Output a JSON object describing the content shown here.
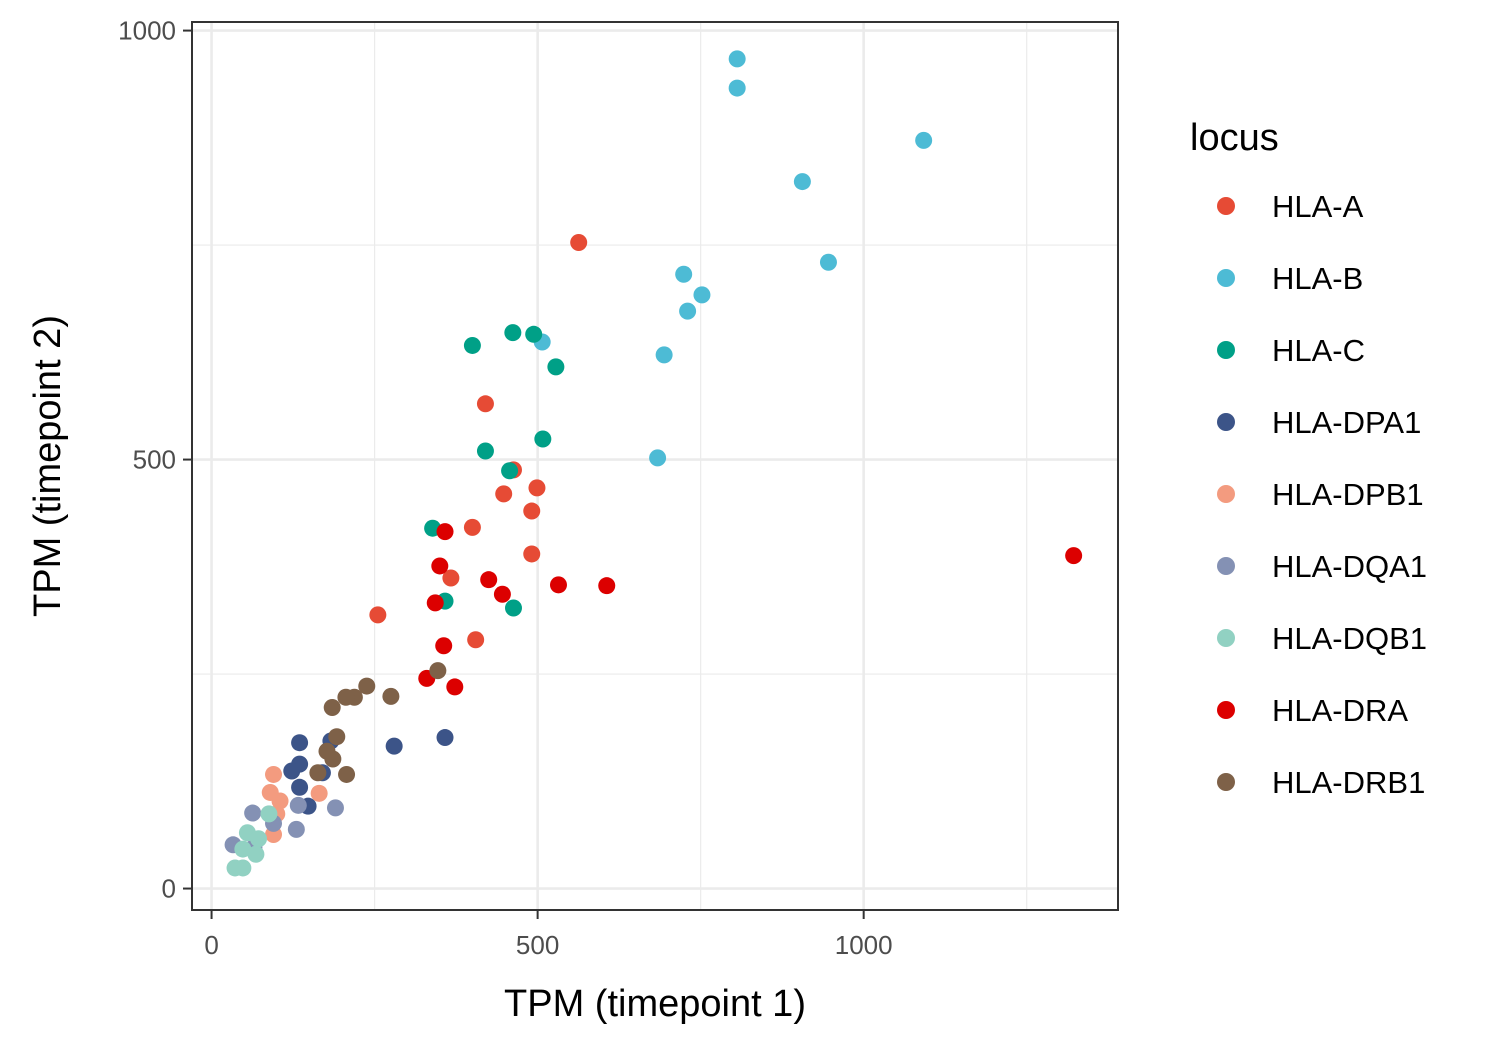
{
  "chart_data": {
    "type": "scatter",
    "title": "",
    "xlabel": "TPM (timepoint 1)",
    "ylabel": "TPM (timepoint 2)",
    "xlim": [
      -30,
      1390
    ],
    "ylim": [
      -25,
      1010
    ],
    "x_ticks": [
      0,
      500,
      1000
    ],
    "y_ticks": [
      0,
      500,
      1000
    ],
    "x_tick_labels": [
      "0",
      "500",
      "1000"
    ],
    "y_tick_labels": [
      "0",
      "500",
      "1000"
    ],
    "grid": true,
    "legend": {
      "title": "locus",
      "position": "right"
    },
    "series": [
      {
        "name": "HLA-A",
        "color": "#E64B35",
        "points": [
          [
            563,
            753
          ],
          [
            420,
            565
          ],
          [
            463,
            488
          ],
          [
            499,
            467
          ],
          [
            448,
            460
          ],
          [
            491,
            440
          ],
          [
            400,
            421
          ],
          [
            491,
            390
          ],
          [
            367,
            362
          ],
          [
            255,
            319
          ],
          [
            405,
            290
          ]
        ]
      },
      {
        "name": "HLA-B",
        "color": "#4DBBD5",
        "points": [
          [
            806,
            967
          ],
          [
            806,
            933
          ],
          [
            1092,
            872
          ],
          [
            906,
            824
          ],
          [
            946,
            730
          ],
          [
            724,
            716
          ],
          [
            752,
            692
          ],
          [
            730,
            673
          ],
          [
            507,
            637
          ],
          [
            694,
            622
          ],
          [
            684,
            502
          ]
        ]
      },
      {
        "name": "HLA-C",
        "color": "#00A087",
        "points": [
          [
            400,
            633
          ],
          [
            462,
            648
          ],
          [
            494,
            646
          ],
          [
            528,
            608
          ],
          [
            508,
            524
          ],
          [
            420,
            510
          ],
          [
            457,
            487
          ],
          [
            339,
            420
          ],
          [
            358,
            335
          ],
          [
            463,
            327
          ]
        ]
      },
      {
        "name": "HLA-DPA1",
        "color": "#3C5488",
        "points": [
          [
            135,
            170
          ],
          [
            135,
            145
          ],
          [
            123,
            137
          ],
          [
            183,
            172
          ],
          [
            280,
            166
          ],
          [
            358,
            176
          ],
          [
            135,
            118
          ],
          [
            170,
            135
          ],
          [
            148,
            96
          ]
        ]
      },
      {
        "name": "HLA-DPB1",
        "color": "#F39B7F",
        "points": [
          [
            95,
            133
          ],
          [
            90,
            112
          ],
          [
            105,
            102
          ],
          [
            100,
            87
          ],
          [
            165,
            111
          ],
          [
            95,
            63
          ]
        ]
      },
      {
        "name": "HLA-DQA1",
        "color": "#8491B4",
        "points": [
          [
            63,
            88
          ],
          [
            133,
            97
          ],
          [
            190,
            94
          ],
          [
            95,
            76
          ],
          [
            130,
            69
          ],
          [
            33,
            51
          ],
          [
            65,
            48
          ]
        ]
      },
      {
        "name": "HLA-DQB1",
        "color": "#91D1C2",
        "points": [
          [
            88,
            87
          ],
          [
            55,
            65
          ],
          [
            72,
            58
          ],
          [
            48,
            46
          ],
          [
            36,
            24
          ],
          [
            48,
            24
          ],
          [
            68,
            40
          ]
        ]
      },
      {
        "name": "HLA-DRA",
        "color": "#DC0000",
        "points": [
          [
            1322,
            388
          ],
          [
            358,
            416
          ],
          [
            350,
            376
          ],
          [
            425,
            360
          ],
          [
            532,
            354
          ],
          [
            606,
            353
          ],
          [
            446,
            343
          ],
          [
            343,
            333
          ],
          [
            356,
            283
          ],
          [
            330,
            245
          ],
          [
            373,
            235
          ]
        ]
      },
      {
        "name": "HLA-DRB1",
        "color": "#7E6148",
        "points": [
          [
            238,
            236
          ],
          [
            219,
            223
          ],
          [
            206,
            223
          ],
          [
            185,
            211
          ],
          [
            275,
            224
          ],
          [
            347,
            254
          ],
          [
            192,
            177
          ],
          [
            177,
            160
          ],
          [
            186,
            151
          ],
          [
            163,
            135
          ],
          [
            207,
            133
          ]
        ]
      }
    ]
  }
}
